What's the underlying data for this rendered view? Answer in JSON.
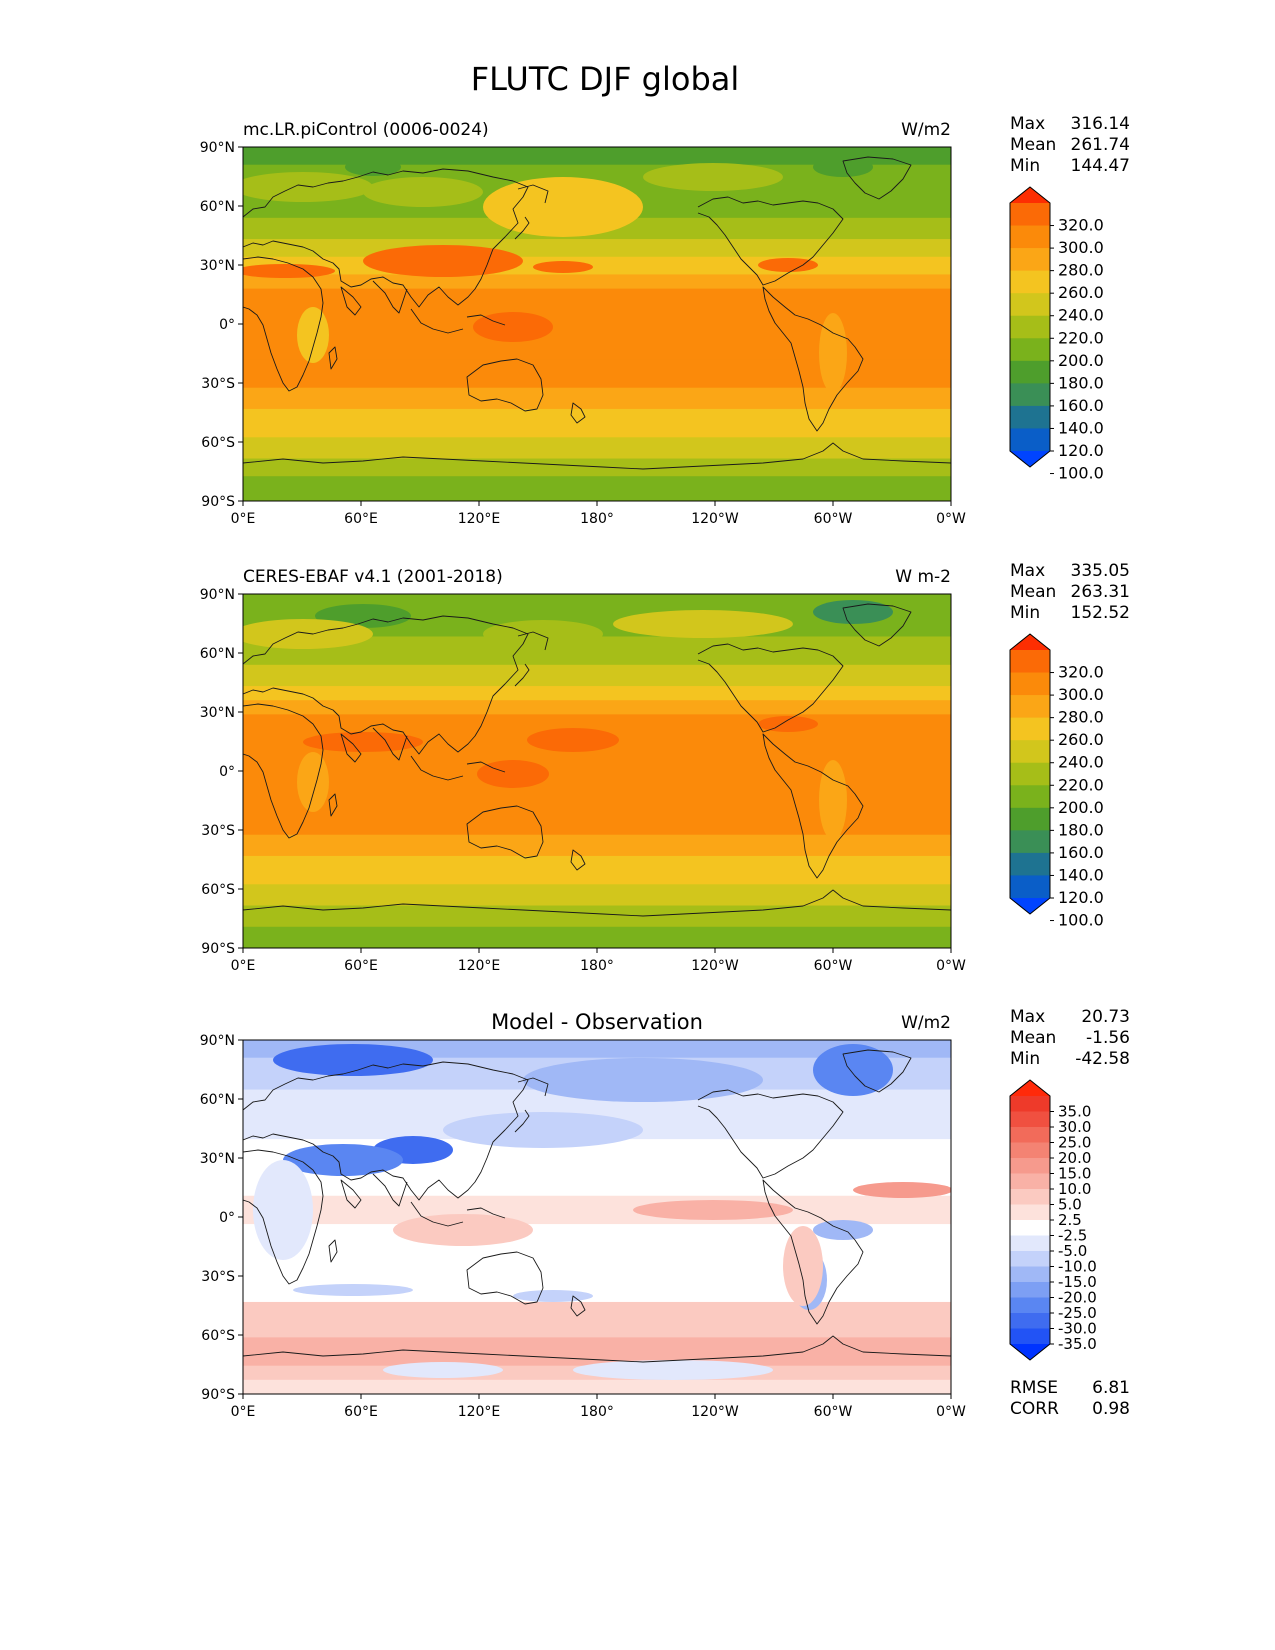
{
  "figure": {
    "title": "FLUTC DJF global"
  },
  "axes": {
    "lat_labels": [
      "90°N",
      "60°N",
      "30°N",
      "0°",
      "30°S",
      "60°S",
      "90°S"
    ],
    "lon_labels": [
      "0°E",
      "60°E",
      "120°E",
      "180°",
      "120°W",
      "60°W",
      "0°W"
    ]
  },
  "colors": {
    "absolute": [
      "#0044ff",
      "#0a5ec8",
      "#1e7391",
      "#3a8f56",
      "#4e9e2c",
      "#7ab21c",
      "#a6be18",
      "#d2c61c",
      "#f4c420",
      "#fba616",
      "#fb8a0a",
      "#fb6a06",
      "#fd2e02"
    ],
    "diff": [
      "#0033ff",
      "#2253f5",
      "#3f6cf0",
      "#5a86f2",
      "#7d9ff4",
      "#a0b8f6",
      "#c4d2fa",
      "#e2e8fc",
      "#ffffff",
      "#fde2dc",
      "#fbcac1",
      "#f9b1a6",
      "#f69a8d",
      "#f48373",
      "#f26b5a",
      "#f05040",
      "#ee3a2a",
      "#ff2a0a"
    ]
  },
  "panels": [
    {
      "id": "model",
      "title_left": "mc.LR.piControl (0006-0024)",
      "title_center": "",
      "units": "W/m2",
      "stats": [
        {
          "label": "Max",
          "value": "316.14"
        },
        {
          "label": "Mean",
          "value": "261.74"
        },
        {
          "label": "Min",
          "value": "144.47"
        }
      ],
      "colorbar_labels": [
        "320.0",
        "300.0",
        "280.0",
        "260.0",
        "240.0",
        "220.0",
        "200.0",
        "180.0",
        "160.0",
        "140.0",
        "120.0",
        "100.0"
      ],
      "extra_stats": []
    },
    {
      "id": "obs",
      "title_left": "CERES-EBAF v4.1 (2001-2018)",
      "title_center": "",
      "units": "W m-2",
      "stats": [
        {
          "label": "Max",
          "value": "335.05"
        },
        {
          "label": "Mean",
          "value": "263.31"
        },
        {
          "label": "Min",
          "value": "152.52"
        }
      ],
      "colorbar_labels": [
        "320.0",
        "300.0",
        "280.0",
        "260.0",
        "240.0",
        "220.0",
        "200.0",
        "180.0",
        "160.0",
        "140.0",
        "120.0",
        "100.0"
      ],
      "extra_stats": []
    },
    {
      "id": "diff",
      "title_left": "",
      "title_center": "Model - Observation",
      "units": "W/m2",
      "stats": [
        {
          "label": "Max",
          "value": "20.73"
        },
        {
          "label": "Mean",
          "value": "-1.56"
        },
        {
          "label": "Min",
          "value": "-42.58"
        }
      ],
      "colorbar_labels": [
        "35.0",
        "30.0",
        "25.0",
        "20.0",
        "15.0",
        "10.0",
        "5.0",
        "2.5",
        "-2.5",
        "-5.0",
        "-10.0",
        "-15.0",
        "-20.0",
        "-25.0",
        "-30.0",
        "-35.0"
      ],
      "extra_stats": [
        {
          "label": "RMSE",
          "value": "6.81"
        },
        {
          "label": "CORR",
          "value": "0.98"
        }
      ]
    }
  ]
}
